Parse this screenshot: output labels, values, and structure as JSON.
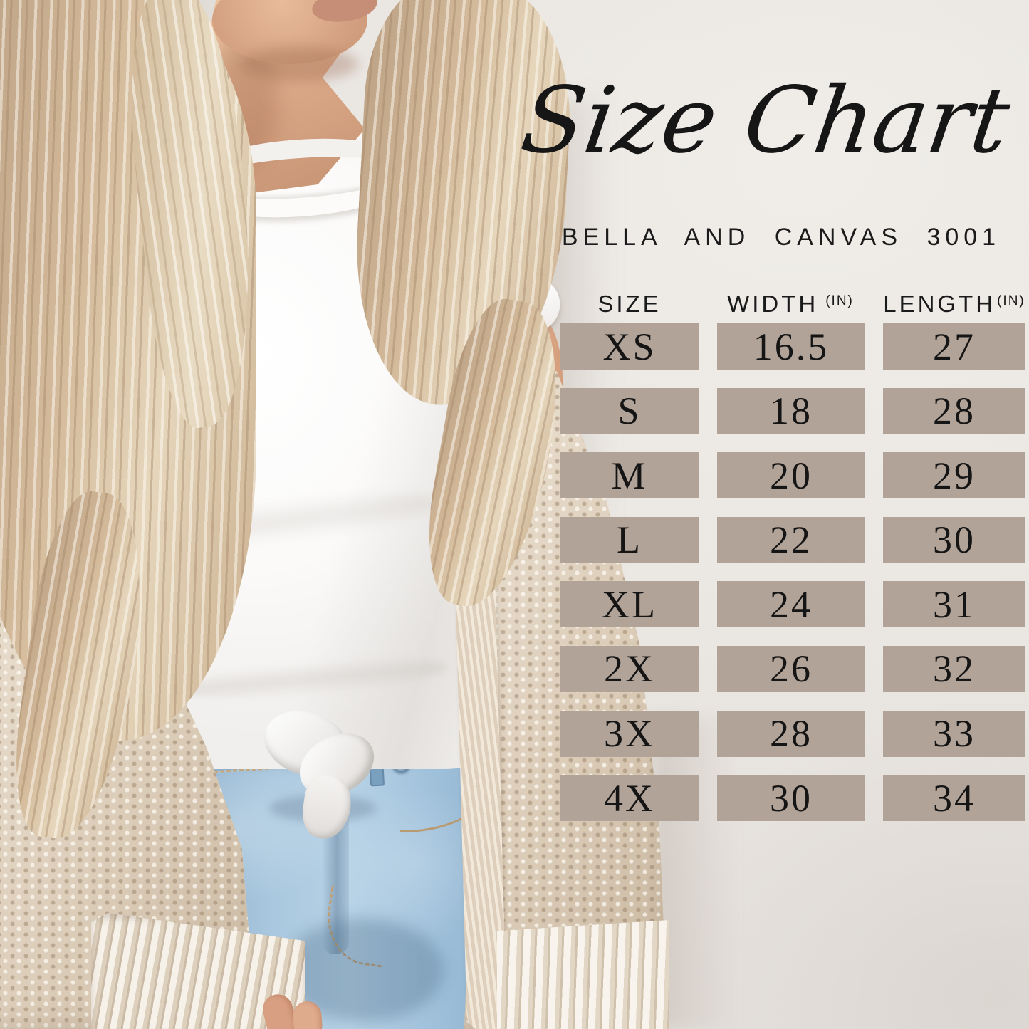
{
  "page": {
    "title": "Size Chart",
    "subtitle": "BELLA AND CANVAS 3001"
  },
  "table": {
    "headers": {
      "size": "SIZE",
      "width": "WIDTH",
      "length": "LENGTH"
    },
    "unit": "(IN)",
    "rows": [
      {
        "size": "XS",
        "width": "16.5",
        "length": "27"
      },
      {
        "size": "S",
        "width": "18",
        "length": "28"
      },
      {
        "size": "M",
        "width": "20",
        "length": "29"
      },
      {
        "size": "L",
        "width": "22",
        "length": "30"
      },
      {
        "size": "XL",
        "width": "24",
        "length": "31"
      },
      {
        "size": "2X",
        "width": "26",
        "length": "32"
      },
      {
        "size": "3X",
        "width": "28",
        "length": "33"
      },
      {
        "size": "4X",
        "width": "30",
        "length": "34"
      }
    ]
  },
  "colors": {
    "cell_bg": "#b2a398",
    "text": "#161616",
    "wall": "#e9e5e1"
  },
  "photo": {
    "alt": "Woman with long wavy blonde hair wearing a white knotted tee, cream waffle-knit cardigan and light-wash jeans"
  },
  "chart_data": {
    "type": "table",
    "title": "Size Chart",
    "subtitle": "BELLA AND CANVAS 3001",
    "columns": [
      "SIZE",
      "WIDTH (IN)",
      "LENGTH (IN)"
    ],
    "rows": [
      [
        "XS",
        16.5,
        27
      ],
      [
        "S",
        18,
        28
      ],
      [
        "M",
        20,
        29
      ],
      [
        "L",
        22,
        30
      ],
      [
        "XL",
        24,
        31
      ],
      [
        "2X",
        26,
        32
      ],
      [
        "3X",
        28,
        33
      ],
      [
        "4X",
        30,
        34
      ]
    ]
  }
}
